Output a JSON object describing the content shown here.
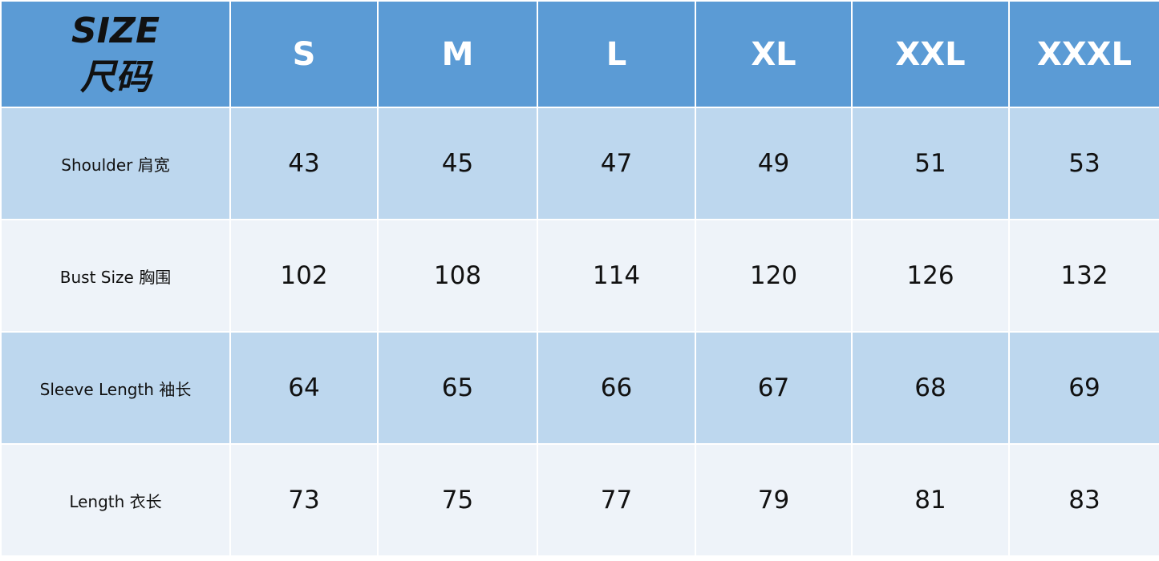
{
  "header": {
    "corner_en": "SIZE",
    "corner_cn": "尺码",
    "sizes": [
      "S",
      "M",
      "L",
      "XL",
      "XXL",
      "XXXL"
    ]
  },
  "rows": [
    {
      "label": "Shoulder  肩宽",
      "values": [
        "43",
        "45",
        "47",
        "49",
        "51",
        "53"
      ]
    },
    {
      "label": "Bust Size  胸围",
      "values": [
        "102",
        "108",
        "114",
        "120",
        "126",
        "132"
      ]
    },
    {
      "label": "Sleeve Length  袖长",
      "values": [
        "64",
        "65",
        "66",
        "67",
        "68",
        "69"
      ]
    },
    {
      "label": "Length  衣长",
      "values": [
        "73",
        "75",
        "77",
        "79",
        "81",
        "83"
      ]
    }
  ],
  "colors": {
    "header": "#5b9bd5",
    "row_dark": "#bdd7ee",
    "row_light": "#eef3f9"
  }
}
